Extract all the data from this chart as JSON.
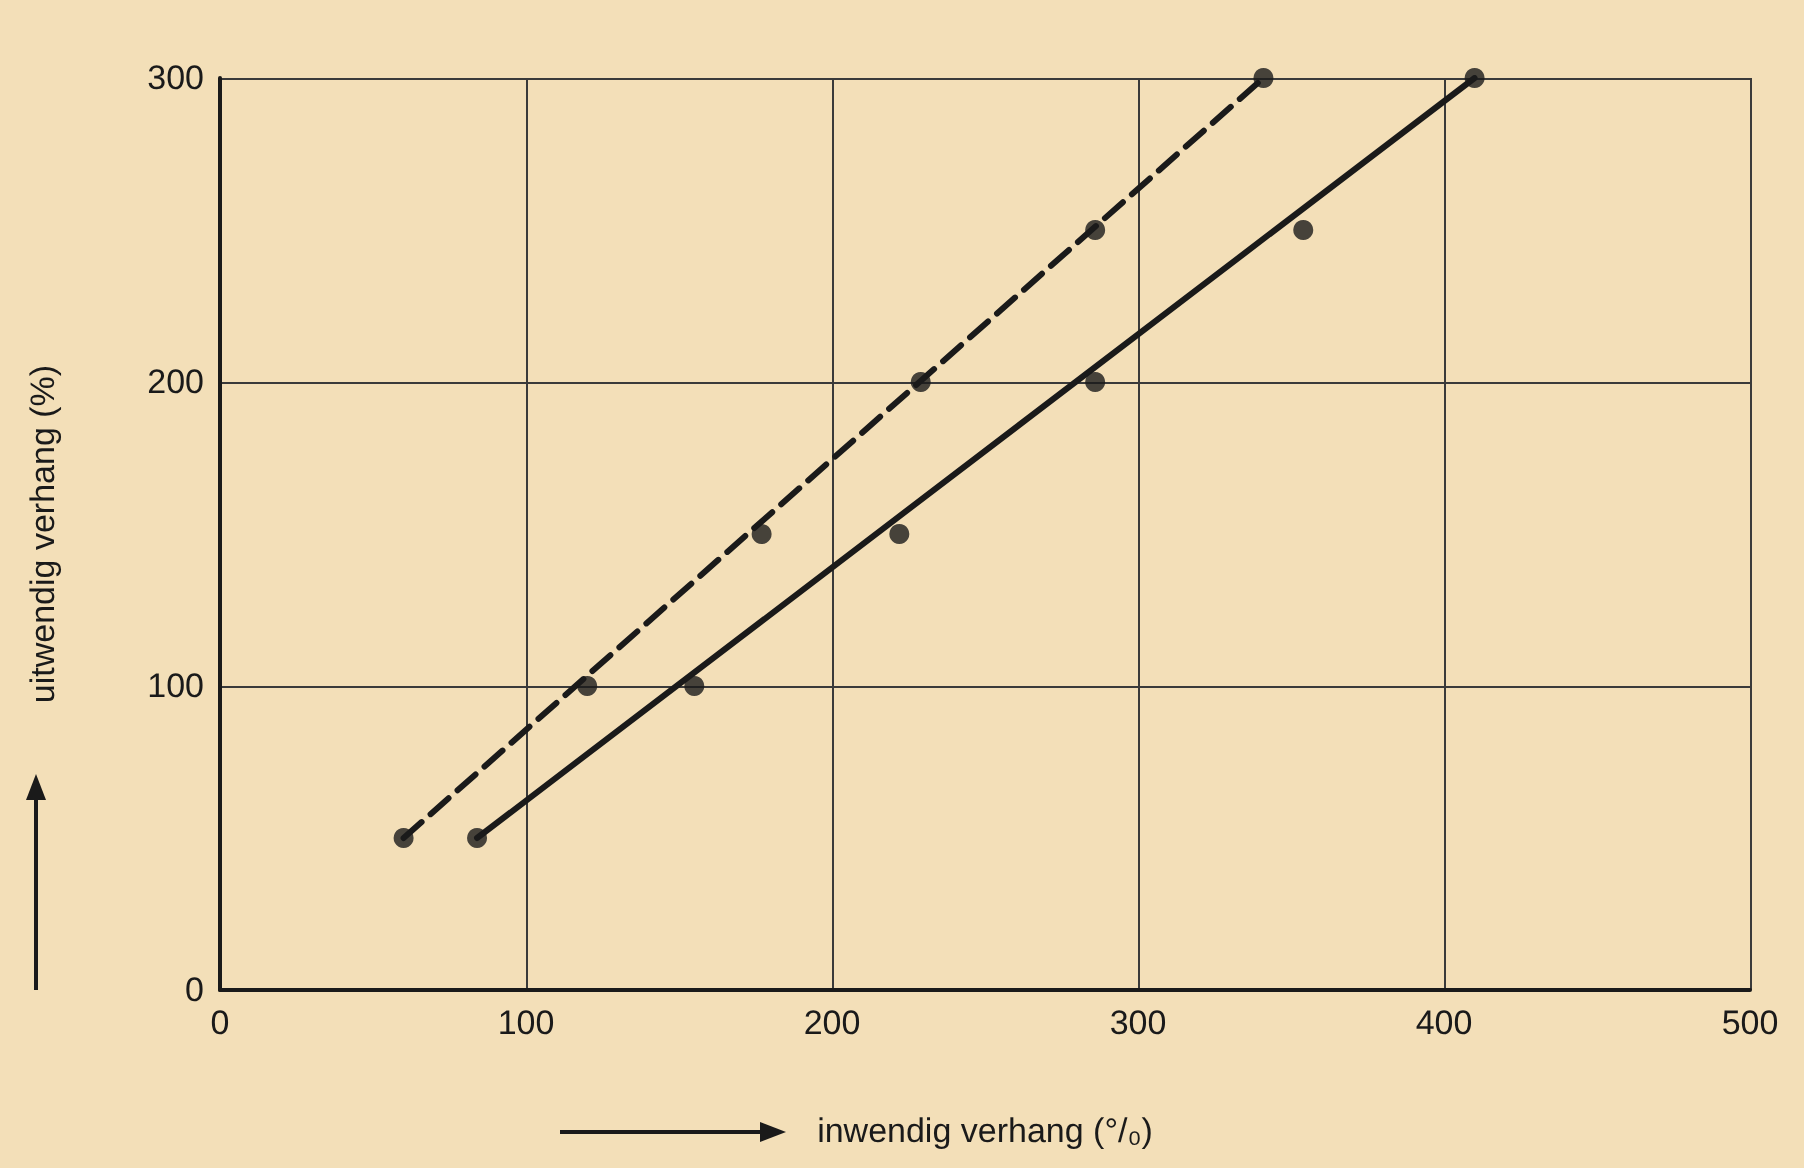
{
  "chart_data": {
    "type": "scatter",
    "xlabel": "inwendig verhang (°/₀)",
    "ylabel": "uitwendig verhang (%)",
    "xlim": [
      0,
      500
    ],
    "xticks": [
      0,
      100,
      200,
      300,
      400,
      500
    ],
    "ylim": [
      0,
      300
    ],
    "yticks": [
      0,
      100,
      200,
      300
    ],
    "grid": true,
    "marker": "circle",
    "series": [
      {
        "color": "#1a1a1a",
        "x": [
          60,
          120,
          177,
          229,
          286,
          341
        ],
        "values": [
          50,
          100,
          150,
          200,
          250,
          300
        ]
      },
      {
        "color": "#1a1a1a",
        "x": [
          84,
          155,
          222,
          286,
          354,
          410
        ],
        "values": [
          50,
          100,
          150,
          200,
          250,
          300
        ]
      },
      {
        "type": "line",
        "color": "#1a1a1a",
        "line_style": "dashed",
        "marker": "none",
        "x": [
          60,
          341
        ],
        "values": [
          50,
          300
        ]
      },
      {
        "type": "line",
        "color": "#1a1a1a",
        "line_style": "solid",
        "marker": "none",
        "x": [
          84,
          410
        ],
        "values": [
          50,
          300
        ]
      }
    ]
  }
}
